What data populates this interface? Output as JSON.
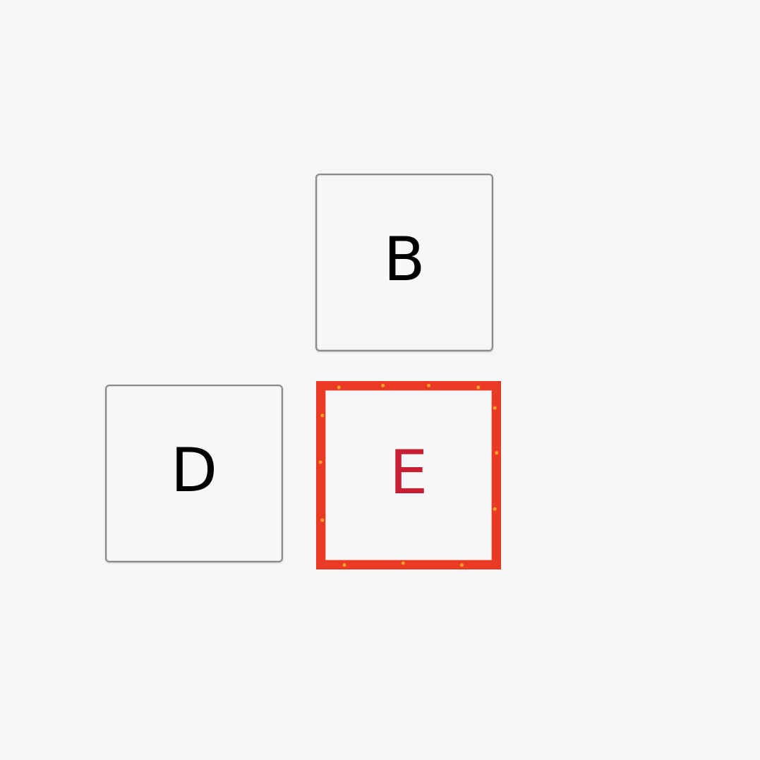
{
  "tiles": [
    {
      "label": "B",
      "state": "default"
    },
    {
      "label": "D",
      "state": "default"
    },
    {
      "label": "E",
      "state": "highlighted"
    }
  ],
  "colors": {
    "background": "#f5f6f7",
    "tile_border": "#8a8a8a",
    "tile_text": "#000000",
    "highlight_border": "#ea3a24",
    "highlight_text": "#c61f33"
  }
}
